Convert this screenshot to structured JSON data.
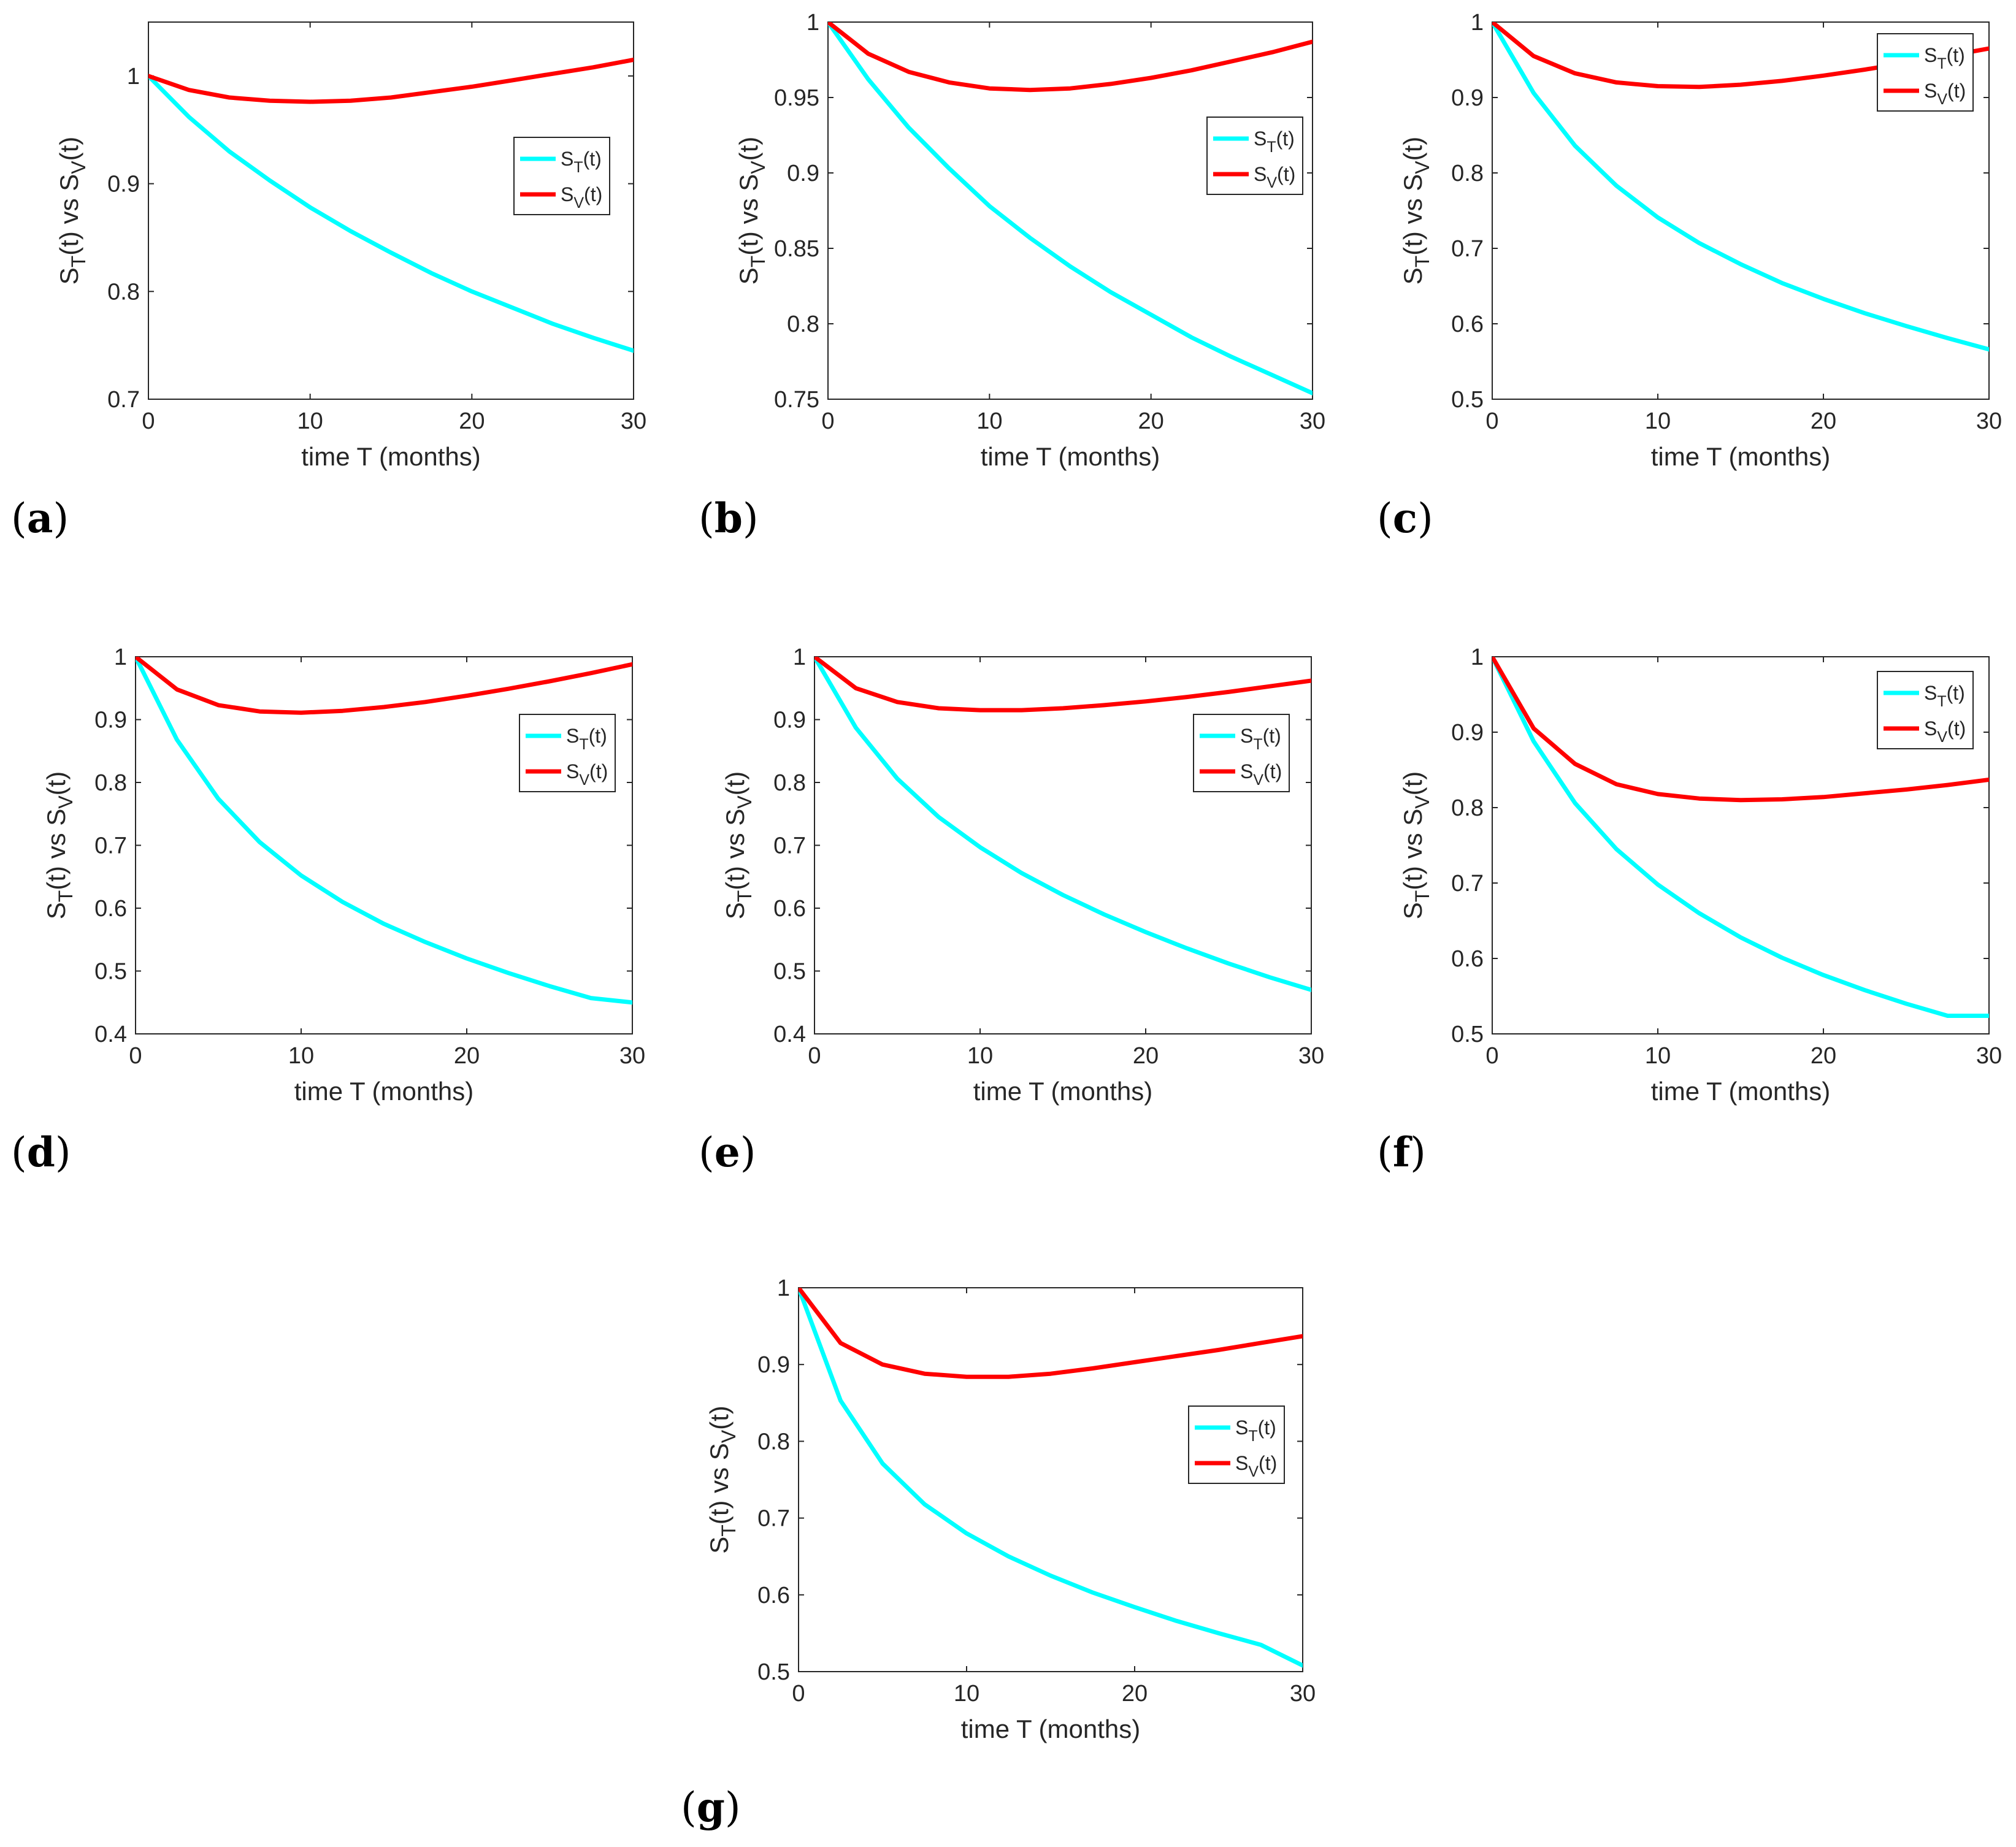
{
  "figure": {
    "curve_colors": {
      "S_T": "#00FFFF",
      "S_V": "#FF0000"
    }
  },
  "chart_data": [
    {
      "id": "a",
      "panel_label": "(a)",
      "type": "line",
      "xlabel": "time T (months)",
      "ylabel": "S_T(t) vs S_V(t)",
      "xlim": [
        0,
        30
      ],
      "ylim": [
        0.7,
        1.05
      ],
      "xticks": [
        0,
        10,
        20,
        30
      ],
      "yticks": [
        0.7,
        0.8,
        0.9,
        1.0
      ],
      "xtick_labels": [
        "0",
        "10",
        "20",
        "30"
      ],
      "ytick_labels": [
        "0.7",
        "0.8",
        "0.9",
        "1"
      ],
      "legend": {
        "position": "mid-right",
        "entries": [
          {
            "base": "S",
            "sub": "T",
            "suffix": "(t)"
          },
          {
            "base": "S",
            "sub": "V",
            "suffix": "(t)"
          }
        ]
      },
      "x": [
        0,
        2.5,
        5,
        7.5,
        10,
        12.5,
        15,
        17.5,
        20,
        22.5,
        25,
        27.5,
        30
      ],
      "series": [
        {
          "name": "S_T(t)",
          "values": [
            1.0,
            0.962,
            0.93,
            0.903,
            0.878,
            0.856,
            0.836,
            0.817,
            0.8,
            0.785,
            0.77,
            0.757,
            0.745
          ]
        },
        {
          "name": "S_V(t)",
          "values": [
            1.0,
            0.987,
            0.98,
            0.977,
            0.976,
            0.977,
            0.98,
            0.985,
            0.99,
            0.996,
            1.002,
            1.008,
            1.015
          ]
        }
      ]
    },
    {
      "id": "b",
      "panel_label": "(b)",
      "type": "line",
      "xlabel": "time T (months)",
      "ylabel": "S_T(t) vs S_V(t)",
      "xlim": [
        0,
        30
      ],
      "ylim": [
        0.75,
        1.0
      ],
      "xticks": [
        0,
        10,
        20,
        30
      ],
      "yticks": [
        0.75,
        0.8,
        0.85,
        0.9,
        0.95,
        1.0
      ],
      "xtick_labels": [
        "0",
        "10",
        "20",
        "30"
      ],
      "ytick_labels": [
        "0.75",
        "0.8",
        "0.85",
        "0.9",
        "0.95",
        "1"
      ],
      "legend": {
        "position": "mid-right",
        "entries": [
          {
            "base": "S",
            "sub": "T",
            "suffix": "(t)"
          },
          {
            "base": "S",
            "sub": "V",
            "suffix": "(t)"
          }
        ]
      },
      "x": [
        0,
        2.5,
        5,
        7.5,
        10,
        12.5,
        15,
        17.5,
        20,
        22.5,
        25,
        27.5,
        30
      ],
      "series": [
        {
          "name": "S_T(t)",
          "values": [
            1.0,
            0.962,
            0.93,
            0.903,
            0.878,
            0.857,
            0.838,
            0.821,
            0.806,
            0.791,
            0.778,
            0.766,
            0.754
          ]
        },
        {
          "name": "S_V(t)",
          "values": [
            1.0,
            0.979,
            0.967,
            0.96,
            0.956,
            0.955,
            0.956,
            0.959,
            0.963,
            0.968,
            0.974,
            0.98,
            0.987
          ]
        }
      ]
    },
    {
      "id": "c",
      "panel_label": "(c)",
      "type": "line",
      "xlabel": "time T (months)",
      "ylabel": "S_T(t) vs S_V(t)",
      "xlim": [
        0,
        30
      ],
      "ylim": [
        0.5,
        1.0
      ],
      "xticks": [
        0,
        10,
        20,
        30
      ],
      "yticks": [
        0.5,
        0.6,
        0.7,
        0.8,
        0.9,
        1.0
      ],
      "xtick_labels": [
        "0",
        "10",
        "20",
        "30"
      ],
      "ytick_labels": [
        "0.5",
        "0.6",
        "0.7",
        "0.8",
        "0.9",
        "1"
      ],
      "legend": {
        "position": "top-right",
        "entries": [
          {
            "base": "S",
            "sub": "T",
            "suffix": "(t)"
          },
          {
            "base": "S",
            "sub": "V",
            "suffix": "(t)"
          }
        ]
      },
      "x": [
        0,
        2.5,
        5,
        7.5,
        10,
        12.5,
        15,
        17.5,
        20,
        22.5,
        25,
        27.5,
        30
      ],
      "series": [
        {
          "name": "S_T(t)",
          "values": [
            1.0,
            0.906,
            0.836,
            0.783,
            0.741,
            0.707,
            0.679,
            0.654,
            0.633,
            0.614,
            0.597,
            0.581,
            0.566
          ]
        },
        {
          "name": "S_V(t)",
          "values": [
            1.0,
            0.955,
            0.932,
            0.92,
            0.915,
            0.914,
            0.917,
            0.922,
            0.929,
            0.937,
            0.946,
            0.955,
            0.965
          ]
        }
      ]
    },
    {
      "id": "d",
      "panel_label": "(d)",
      "type": "line",
      "xlabel": "time T (months)",
      "ylabel": "S_T(t) vs S_V(t)",
      "xlim": [
        0,
        30
      ],
      "ylim": [
        0.4,
        1.0
      ],
      "xticks": [
        0,
        10,
        20,
        30
      ],
      "yticks": [
        0.4,
        0.5,
        0.6,
        0.7,
        0.8,
        0.9,
        1.0
      ],
      "xtick_labels": [
        "0",
        "10",
        "20",
        "30"
      ],
      "ytick_labels": [
        "0.4",
        "0.5",
        "0.6",
        "0.7",
        "0.8",
        "0.9",
        "1"
      ],
      "legend": {
        "position": "mid-right",
        "entries": [
          {
            "base": "S",
            "sub": "T",
            "suffix": "(t)"
          },
          {
            "base": "S",
            "sub": "V",
            "suffix": "(t)"
          }
        ]
      },
      "x": [
        0,
        2.5,
        5,
        7.5,
        10,
        12.5,
        15,
        17.5,
        20,
        22.5,
        25,
        27.5,
        30
      ],
      "series": [
        {
          "name": "S_T(t)",
          "values": [
            1.0,
            0.868,
            0.774,
            0.705,
            0.652,
            0.61,
            0.575,
            0.546,
            0.52,
            0.497,
            0.476,
            0.457,
            0.45
          ]
        },
        {
          "name": "S_V(t)",
          "values": [
            1.0,
            0.948,
            0.923,
            0.913,
            0.911,
            0.914,
            0.92,
            0.928,
            0.938,
            0.949,
            0.961,
            0.974,
            0.988
          ]
        }
      ]
    },
    {
      "id": "e",
      "panel_label": "(e)",
      "type": "line",
      "xlabel": "time T (months)",
      "ylabel": "S_T(t) vs S_V(t)",
      "xlim": [
        0,
        30
      ],
      "ylim": [
        0.4,
        1.0
      ],
      "xticks": [
        0,
        10,
        20,
        30
      ],
      "yticks": [
        0.4,
        0.5,
        0.6,
        0.7,
        0.8,
        0.9,
        1.0
      ],
      "xtick_labels": [
        "0",
        "10",
        "20",
        "30"
      ],
      "ytick_labels": [
        "0.4",
        "0.5",
        "0.6",
        "0.7",
        "0.8",
        "0.9",
        "1"
      ],
      "legend": {
        "position": "mid-right",
        "entries": [
          {
            "base": "S",
            "sub": "T",
            "suffix": "(t)"
          },
          {
            "base": "S",
            "sub": "V",
            "suffix": "(t)"
          }
        ]
      },
      "x": [
        0,
        2.5,
        5,
        7.5,
        10,
        12.5,
        15,
        17.5,
        20,
        22.5,
        25,
        27.5,
        30
      ],
      "series": [
        {
          "name": "S_T(t)",
          "values": [
            1.0,
            0.887,
            0.806,
            0.745,
            0.697,
            0.656,
            0.621,
            0.59,
            0.562,
            0.536,
            0.512,
            0.49,
            0.47
          ]
        },
        {
          "name": "S_V(t)",
          "values": [
            1.0,
            0.95,
            0.928,
            0.918,
            0.915,
            0.915,
            0.918,
            0.923,
            0.929,
            0.936,
            0.944,
            0.953,
            0.962
          ]
        }
      ]
    },
    {
      "id": "f",
      "panel_label": "(f)",
      "type": "line",
      "xlabel": "time T (months)",
      "ylabel": "S_T(t) vs S_V(t)",
      "xlim": [
        0,
        30
      ],
      "ylim": [
        0.5,
        1.0
      ],
      "xticks": [
        0,
        10,
        20,
        30
      ],
      "yticks": [
        0.5,
        0.6,
        0.7,
        0.8,
        0.9,
        1.0
      ],
      "xtick_labels": [
        "0",
        "10",
        "20",
        "30"
      ],
      "ytick_labels": [
        "0.5",
        "0.6",
        "0.7",
        "0.8",
        "0.9",
        "1"
      ],
      "legend": {
        "position": "top-right",
        "entries": [
          {
            "base": "S",
            "sub": "T",
            "suffix": "(t)"
          },
          {
            "base": "S",
            "sub": "V",
            "suffix": "(t)"
          }
        ]
      },
      "x": [
        0,
        2.5,
        5,
        7.5,
        10,
        12.5,
        15,
        17.5,
        20,
        22.5,
        25,
        27.5,
        30
      ],
      "series": [
        {
          "name": "S_T(t)",
          "values": [
            1.0,
            0.888,
            0.806,
            0.745,
            0.698,
            0.66,
            0.628,
            0.601,
            0.578,
            0.558,
            0.54,
            0.524,
            0.524
          ]
        },
        {
          "name": "S_V(t)",
          "values": [
            1.0,
            0.905,
            0.858,
            0.831,
            0.818,
            0.812,
            0.81,
            0.811,
            0.814,
            0.819,
            0.824,
            0.83,
            0.837
          ]
        }
      ]
    },
    {
      "id": "g",
      "panel_label": "(g)",
      "type": "line",
      "xlabel": "time T (months)",
      "ylabel": "S_T(t) vs S_V(t)",
      "xlim": [
        0,
        30
      ],
      "ylim": [
        0.5,
        1.0
      ],
      "xticks": [
        0,
        10,
        20,
        30
      ],
      "yticks": [
        0.5,
        0.6,
        0.7,
        0.8,
        0.9,
        1.0
      ],
      "xtick_labels": [
        "0",
        "10",
        "20",
        "30"
      ],
      "ytick_labels": [
        "0.5",
        "0.6",
        "0.7",
        "0.8",
        "0.9",
        "1"
      ],
      "legend": {
        "position": "mid-right",
        "entries": [
          {
            "base": "S",
            "sub": "T",
            "suffix": "(t)"
          },
          {
            "base": "S",
            "sub": "V",
            "suffix": "(t)"
          }
        ]
      },
      "x": [
        0,
        2.5,
        5,
        7.5,
        10,
        12.5,
        15,
        17.5,
        20,
        22.5,
        25,
        27.5,
        30
      ],
      "series": [
        {
          "name": "S_T(t)",
          "values": [
            1.0,
            0.853,
            0.771,
            0.718,
            0.68,
            0.65,
            0.625,
            0.603,
            0.584,
            0.566,
            0.55,
            0.535,
            0.508
          ]
        },
        {
          "name": "S_V(t)",
          "values": [
            1.0,
            0.928,
            0.9,
            0.888,
            0.884,
            0.884,
            0.888,
            0.895,
            0.903,
            0.911,
            0.919,
            0.928,
            0.937
          ]
        }
      ]
    }
  ]
}
